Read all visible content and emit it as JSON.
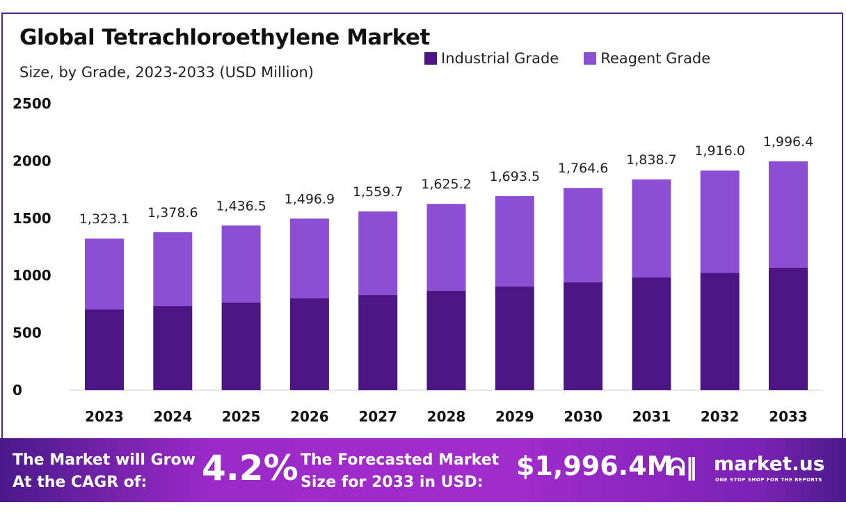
{
  "chart_data": {
    "type": "bar",
    "stacked": true,
    "title": "Global Tetrachloroethylene Market",
    "subtitle": "Size, by Grade, 2023-2033 (USD Million)",
    "categories": [
      "2023",
      "2024",
      "2025",
      "2026",
      "2027",
      "2028",
      "2029",
      "2030",
      "2031",
      "2032",
      "2033"
    ],
    "series": [
      {
        "name": "Industrial Grade",
        "color": "#4b1583",
        "values": [
          704,
          734,
          765,
          801,
          831,
          868,
          904,
          941,
          983,
          1025,
          1068
        ]
      },
      {
        "name": "Reagent Grade",
        "color": "#8c4fd3",
        "values": [
          619.1,
          644.6,
          671.5,
          695.9,
          728.7,
          757.2,
          789.5,
          823.6,
          855.7,
          891.0,
          928.4
        ]
      }
    ],
    "totals": [
      "1,323.1",
      "1,378.6",
      "1,436.5",
      "1,496.9",
      "1,559.7",
      "1,625.2",
      "1,693.5",
      "1,764.6",
      "1,838.7",
      "1,916.0",
      "1,996.4"
    ],
    "total_values": [
      1323.1,
      1378.6,
      1436.5,
      1496.9,
      1559.7,
      1625.2,
      1693.5,
      1764.6,
      1838.7,
      1916.0,
      1996.4
    ],
    "ylim": [
      0,
      2500
    ],
    "yticks": [
      "0",
      "500",
      "1000",
      "1500",
      "2000",
      "2500"
    ],
    "grid": false,
    "legend": "top-right"
  },
  "footer": {
    "cagr_label_1": "The Market will Grow",
    "cagr_label_2": "At the CAGR of:",
    "cagr_value": "4.2%",
    "forecast_label_1": "The Forecasted Market",
    "forecast_label_2": "Size for 2033 in USD:",
    "forecast_value": "$1,996.4M",
    "brand": "market.us",
    "tagline": "ONE STOP SHOP FOR THE REPORTS"
  }
}
